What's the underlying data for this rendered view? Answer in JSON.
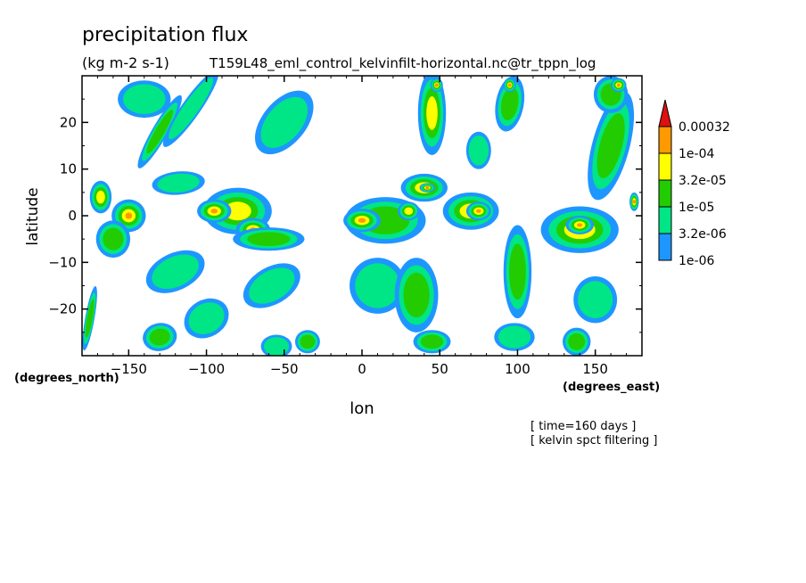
{
  "chart_data": {
    "type": "heatmap",
    "title": "precipitation flux",
    "units": "(kg m-2 s-1)",
    "source": "T159L48_eml_control_kelvinfilt-horizontal.nc@tr_tppn_log",
    "xlabel": "lon",
    "ylabel": "latitude",
    "x_units": "(degrees_east)",
    "y_units": "(degrees_north)",
    "xlim": [
      -180,
      180
    ],
    "ylim": [
      -30,
      30
    ],
    "x_ticks": [
      -150,
      -100,
      -50,
      0,
      50,
      100,
      150
    ],
    "y_ticks": [
      -20,
      -10,
      0,
      10,
      20
    ],
    "grid": false,
    "colorbar": {
      "position": "right",
      "levels": [
        "1e-06",
        "3.2e-06",
        "1e-05",
        "3.2e-05",
        "1e-04",
        "0.00032"
      ],
      "colors": [
        "#1E96FF",
        "#00E686",
        "#22CC00",
        "#FFFF00",
        "#FF9900",
        "#DD1111"
      ]
    },
    "annotations": [
      "[ time=160 days ]",
      "[ kelvin spct filtering ]"
    ],
    "bands": [
      {
        "lon": -168,
        "lat": 4,
        "w": 14,
        "h": 7,
        "level": 3,
        "tilt": 0
      },
      {
        "lon": -150,
        "lat": 0,
        "w": 22,
        "h": 7,
        "level": 4,
        "tilt": 0
      },
      {
        "lon": -160,
        "lat": -5,
        "w": 22,
        "h": 8,
        "level": 2,
        "tilt": 0
      },
      {
        "lon": -175,
        "lat": -22,
        "w": 6,
        "h": 14,
        "level": 2,
        "tilt": 10
      },
      {
        "lon": -140,
        "lat": 25,
        "w": 34,
        "h": 8,
        "level": 1,
        "tilt": 0
      },
      {
        "lon": -130,
        "lat": 18,
        "w": 10,
        "h": 18,
        "level": 2,
        "tilt": 30
      },
      {
        "lon": -110,
        "lat": 23,
        "w": 12,
        "h": 20,
        "level": 1,
        "tilt": 35
      },
      {
        "lon": -118,
        "lat": 7,
        "w": 34,
        "h": 5,
        "level": 1,
        "tilt": -5
      },
      {
        "lon": -80,
        "lat": 1,
        "w": 44,
        "h": 10,
        "level": 3,
        "tilt": 0
      },
      {
        "lon": -95,
        "lat": 1,
        "w": 22,
        "h": 5,
        "level": 4,
        "tilt": 0
      },
      {
        "lon": -70,
        "lat": -3,
        "w": 22,
        "h": 5,
        "level": 4,
        "tilt": 0
      },
      {
        "lon": -60,
        "lat": -5,
        "w": 46,
        "h": 5,
        "level": 2,
        "tilt": 0
      },
      {
        "lon": -120,
        "lat": -12,
        "w": 40,
        "h": 8,
        "level": 1,
        "tilt": -25
      },
      {
        "lon": -100,
        "lat": -22,
        "w": 30,
        "h": 8,
        "level": 1,
        "tilt": -30
      },
      {
        "lon": -130,
        "lat": -26,
        "w": 22,
        "h": 6,
        "level": 2,
        "tilt": -10
      },
      {
        "lon": -50,
        "lat": 20,
        "w": 28,
        "h": 16,
        "level": 1,
        "tilt": 40
      },
      {
        "lon": -58,
        "lat": -15,
        "w": 40,
        "h": 8,
        "level": 1,
        "tilt": -30
      },
      {
        "lon": -55,
        "lat": -28,
        "w": 20,
        "h": 5,
        "level": 1,
        "tilt": 0
      },
      {
        "lon": -35,
        "lat": -27,
        "w": 16,
        "h": 5,
        "level": 2,
        "tilt": 0
      },
      {
        "lon": 15,
        "lat": -1,
        "w": 52,
        "h": 10,
        "level": 2,
        "tilt": 0
      },
      {
        "lon": 0,
        "lat": -1,
        "w": 24,
        "h": 5,
        "level": 4,
        "tilt": 0
      },
      {
        "lon": 30,
        "lat": 1,
        "w": 14,
        "h": 4,
        "level": 3,
        "tilt": 0
      },
      {
        "lon": 10,
        "lat": -15,
        "w": 36,
        "h": 12,
        "level": 1,
        "tilt": 10
      },
      {
        "lon": 35,
        "lat": -17,
        "w": 28,
        "h": 16,
        "level": 2,
        "tilt": 0
      },
      {
        "lon": 45,
        "lat": -27,
        "w": 24,
        "h": 5,
        "level": 2,
        "tilt": 0
      },
      {
        "lon": 45,
        "lat": 22,
        "w": 18,
        "h": 18,
        "level": 3,
        "tilt": 0
      },
      {
        "lon": 48,
        "lat": 28,
        "w": 8,
        "h": 3,
        "level": 4,
        "tilt": 0
      },
      {
        "lon": 40,
        "lat": 6,
        "w": 30,
        "h": 6,
        "level": 3,
        "tilt": 0
      },
      {
        "lon": 42,
        "lat": 6,
        "w": 10,
        "h": 2,
        "level": 4,
        "tilt": 0
      },
      {
        "lon": 70,
        "lat": 1,
        "w": 36,
        "h": 8,
        "level": 3,
        "tilt": 0
      },
      {
        "lon": 75,
        "lat": 1,
        "w": 16,
        "h": 4,
        "level": 4,
        "tilt": 0
      },
      {
        "lon": 75,
        "lat": 14,
        "w": 16,
        "h": 8,
        "level": 1,
        "tilt": 0
      },
      {
        "lon": 95,
        "lat": 24,
        "w": 18,
        "h": 12,
        "level": 2,
        "tilt": 10
      },
      {
        "lon": 95,
        "lat": 28,
        "w": 8,
        "h": 3,
        "level": 4,
        "tilt": 0
      },
      {
        "lon": 100,
        "lat": -12,
        "w": 18,
        "h": 20,
        "level": 2,
        "tilt": 0
      },
      {
        "lon": 98,
        "lat": -26,
        "w": 26,
        "h": 6,
        "level": 1,
        "tilt": 0
      },
      {
        "lon": 140,
        "lat": -3,
        "w": 50,
        "h": 10,
        "level": 3,
        "tilt": 0
      },
      {
        "lon": 140,
        "lat": -2,
        "w": 18,
        "h": 4,
        "level": 4,
        "tilt": 0
      },
      {
        "lon": 160,
        "lat": 15,
        "w": 24,
        "h": 24,
        "level": 2,
        "tilt": 15
      },
      {
        "lon": 160,
        "lat": 26,
        "w": 22,
        "h": 8,
        "level": 2,
        "tilt": 0
      },
      {
        "lon": 165,
        "lat": 28,
        "w": 10,
        "h": 3,
        "level": 4,
        "tilt": 0
      },
      {
        "lon": 150,
        "lat": -18,
        "w": 28,
        "h": 10,
        "level": 1,
        "tilt": 0
      },
      {
        "lon": 138,
        "lat": -27,
        "w": 18,
        "h": 6,
        "level": 2,
        "tilt": 0
      },
      {
        "lon": 175,
        "lat": 3,
        "w": 6,
        "h": 4,
        "level": 4,
        "tilt": 0
      }
    ]
  }
}
